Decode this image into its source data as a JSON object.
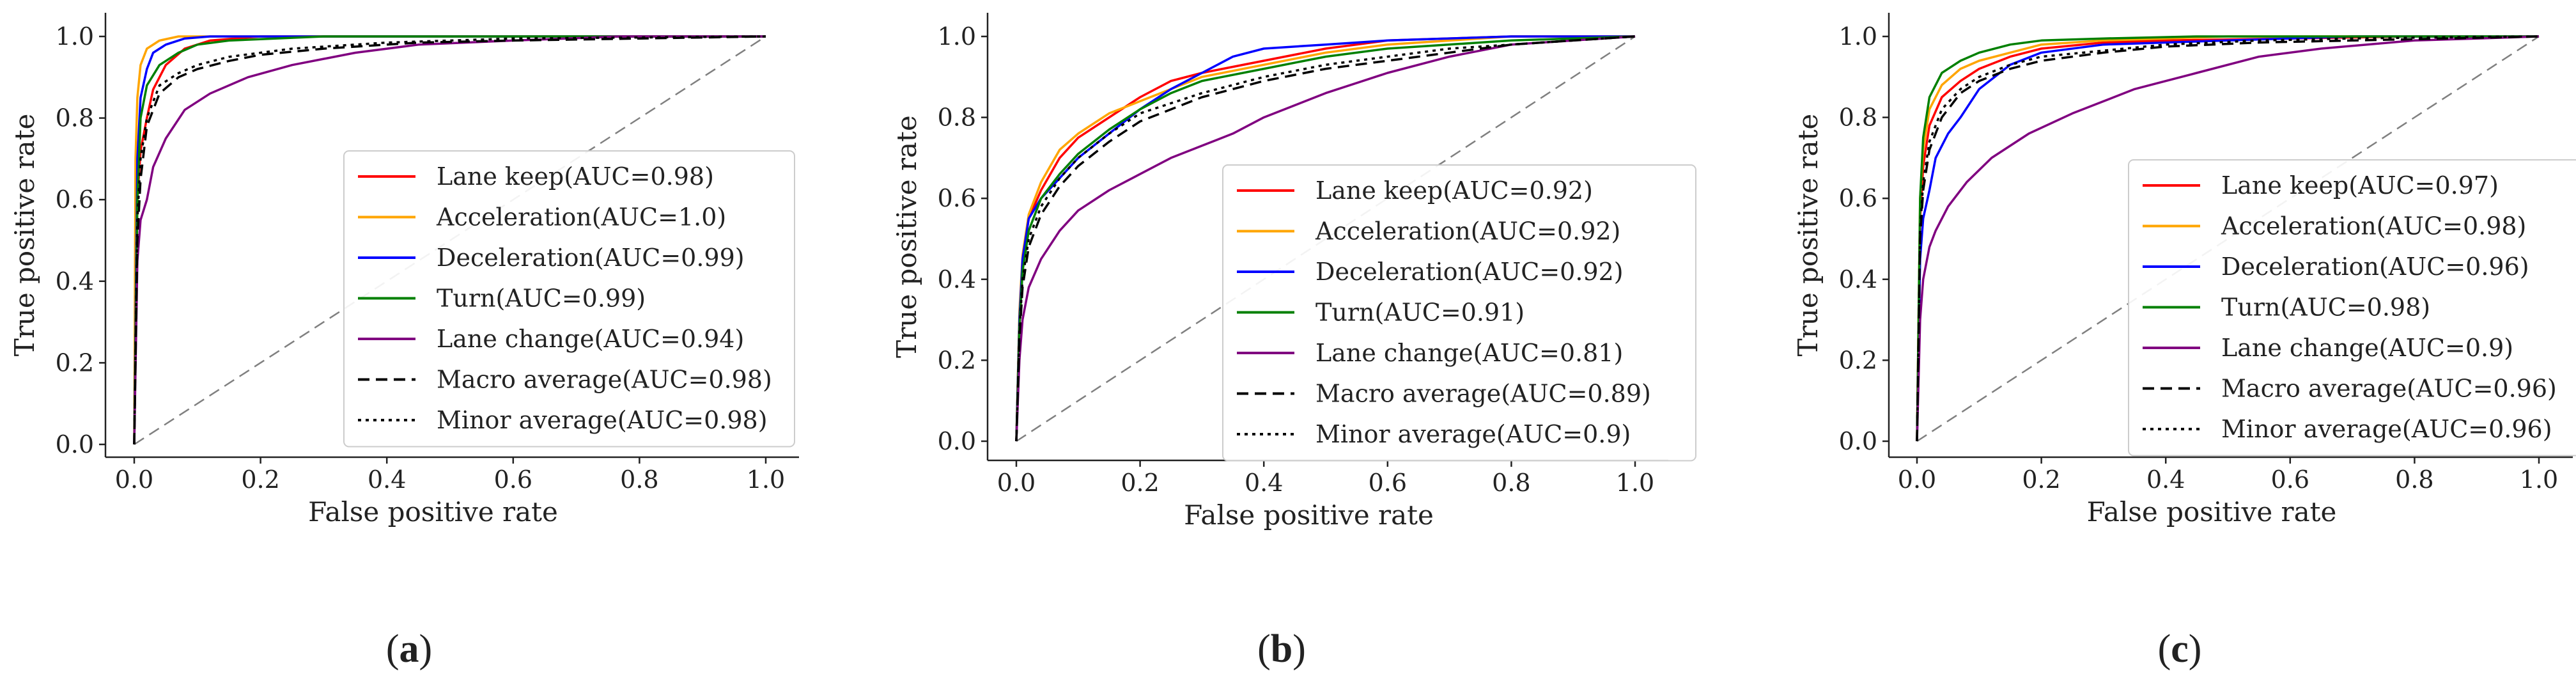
{
  "figure": {
    "panel_labels": [
      "a",
      "b",
      "c"
    ]
  },
  "chart_data": [
    {
      "type": "line",
      "panel": "a",
      "title": "",
      "xlabel": "False positive rate",
      "ylabel": "True positive rate",
      "xlim": [
        0.0,
        1.0
      ],
      "ylim": [
        0.0,
        1.0
      ],
      "xticks": [
        "0.0",
        "0.2",
        "0.4",
        "0.6",
        "0.8",
        "1.0"
      ],
      "yticks": [
        "0.0",
        "0.2",
        "0.4",
        "0.6",
        "0.8",
        "1.0"
      ],
      "legend_position": "lower-right",
      "grid": false,
      "series": [
        {
          "name": "Lane keep",
          "legend": "Lane keep(AUC=0.98)",
          "color": "#ff0000",
          "style": "solid",
          "x": [
            0,
            0.005,
            0.01,
            0.02,
            0.03,
            0.05,
            0.08,
            0.12,
            0.2,
            0.4,
            0.7,
            1
          ],
          "y": [
            0,
            0.6,
            0.72,
            0.8,
            0.87,
            0.93,
            0.97,
            0.99,
            1.0,
            1,
            1,
            1
          ]
        },
        {
          "name": "Acceleration",
          "legend": "Acceleration(AUC=1.0)",
          "color": "#ffa500",
          "style": "solid",
          "x": [
            0,
            0.002,
            0.005,
            0.01,
            0.02,
            0.04,
            0.07,
            0.1,
            1
          ],
          "y": [
            0,
            0.7,
            0.85,
            0.93,
            0.97,
            0.99,
            1,
            1,
            1
          ]
        },
        {
          "name": "Deceleration",
          "legend": "Deceleration(AUC=0.99)",
          "color": "#0000ff",
          "style": "solid",
          "x": [
            0,
            0.005,
            0.01,
            0.02,
            0.03,
            0.05,
            0.08,
            0.12,
            0.2,
            1
          ],
          "y": [
            0,
            0.7,
            0.85,
            0.92,
            0.96,
            0.98,
            0.995,
            1,
            1,
            1
          ]
        },
        {
          "name": "Turn",
          "legend": "Turn(AUC=0.99)",
          "color": "#008000",
          "style": "solid",
          "x": [
            0,
            0.005,
            0.01,
            0.02,
            0.04,
            0.07,
            0.1,
            0.15,
            0.3,
            1
          ],
          "y": [
            0,
            0.6,
            0.8,
            0.88,
            0.93,
            0.96,
            0.98,
            0.99,
            1,
            1
          ]
        },
        {
          "name": "Lane change",
          "legend": "Lane change(AUC=0.94)",
          "color": "#800080",
          "style": "solid",
          "x": [
            0,
            0.005,
            0.01,
            0.02,
            0.03,
            0.05,
            0.08,
            0.12,
            0.18,
            0.25,
            0.35,
            0.45,
            0.6,
            0.77,
            1
          ],
          "y": [
            0,
            0.45,
            0.55,
            0.6,
            0.68,
            0.75,
            0.82,
            0.86,
            0.9,
            0.93,
            0.96,
            0.98,
            0.99,
            1,
            1
          ]
        },
        {
          "name": "Macro average",
          "legend": "Macro average(AUC=0.98)",
          "color": "#000000",
          "style": "dashed",
          "x": [
            0,
            0.005,
            0.01,
            0.02,
            0.04,
            0.07,
            0.1,
            0.15,
            0.2,
            0.3,
            0.45,
            0.6,
            0.8,
            1
          ],
          "y": [
            0,
            0.5,
            0.65,
            0.78,
            0.86,
            0.9,
            0.92,
            0.94,
            0.955,
            0.97,
            0.985,
            0.99,
            0.995,
            1
          ]
        },
        {
          "name": "Minor average",
          "legend": "Minor average(AUC=0.98)",
          "color": "#000000",
          "style": "dotted",
          "x": [
            0,
            0.005,
            0.01,
            0.02,
            0.04,
            0.07,
            0.1,
            0.15,
            0.25,
            0.4,
            0.6,
            1
          ],
          "y": [
            0,
            0.55,
            0.7,
            0.8,
            0.88,
            0.91,
            0.93,
            0.95,
            0.97,
            0.985,
            0.995,
            1
          ]
        },
        {
          "name": "Chance",
          "legend": "",
          "color": "#808080",
          "style": "dashed",
          "x": [
            0,
            1
          ],
          "y": [
            0,
            1
          ]
        }
      ]
    },
    {
      "type": "line",
      "panel": "b",
      "title": "",
      "xlabel": "False positive rate",
      "ylabel": "True positive rate",
      "xlim": [
        0.0,
        1.0
      ],
      "ylim": [
        0.0,
        1.0
      ],
      "xticks": [
        "0.0",
        "0.2",
        "0.4",
        "0.6",
        "0.8",
        "1.0"
      ],
      "yticks": [
        "0.0",
        "0.2",
        "0.4",
        "0.6",
        "0.8",
        "1.0"
      ],
      "legend_position": "lower-right",
      "grid": false,
      "series": [
        {
          "name": "Lane keep",
          "legend": "Lane keep(AUC=0.92)",
          "color": "#ff0000",
          "style": "solid",
          "x": [
            0,
            0.005,
            0.01,
            0.02,
            0.04,
            0.07,
            0.1,
            0.15,
            0.2,
            0.25,
            0.3,
            0.4,
            0.5,
            0.6,
            0.8,
            1
          ],
          "y": [
            0,
            0.3,
            0.45,
            0.55,
            0.62,
            0.7,
            0.75,
            0.8,
            0.85,
            0.89,
            0.91,
            0.94,
            0.97,
            0.99,
            1,
            1
          ]
        },
        {
          "name": "Acceleration",
          "legend": "Acceleration(AUC=0.92)",
          "color": "#ffa500",
          "style": "solid",
          "x": [
            0,
            0.005,
            0.01,
            0.02,
            0.04,
            0.07,
            0.1,
            0.15,
            0.2,
            0.25,
            0.3,
            0.4,
            0.5,
            0.6,
            0.8,
            1
          ],
          "y": [
            0,
            0.32,
            0.46,
            0.56,
            0.64,
            0.72,
            0.76,
            0.81,
            0.84,
            0.87,
            0.9,
            0.93,
            0.96,
            0.98,
            1,
            1
          ]
        },
        {
          "name": "Deceleration",
          "legend": "Deceleration(AUC=0.92)",
          "color": "#0000ff",
          "style": "solid",
          "x": [
            0,
            0.005,
            0.01,
            0.02,
            0.04,
            0.07,
            0.1,
            0.15,
            0.2,
            0.25,
            0.3,
            0.35,
            0.4,
            0.5,
            0.6,
            0.8,
            1
          ],
          "y": [
            0,
            0.3,
            0.45,
            0.55,
            0.6,
            0.65,
            0.7,
            0.76,
            0.82,
            0.87,
            0.91,
            0.95,
            0.97,
            0.98,
            0.99,
            1,
            1
          ]
        },
        {
          "name": "Turn",
          "legend": "Turn(AUC=0.91)",
          "color": "#008000",
          "style": "solid",
          "x": [
            0,
            0.005,
            0.01,
            0.02,
            0.04,
            0.07,
            0.1,
            0.15,
            0.2,
            0.25,
            0.3,
            0.4,
            0.5,
            0.6,
            0.8,
            1
          ],
          "y": [
            0,
            0.28,
            0.42,
            0.52,
            0.6,
            0.66,
            0.71,
            0.77,
            0.82,
            0.86,
            0.89,
            0.92,
            0.95,
            0.97,
            0.99,
            1
          ]
        },
        {
          "name": "Lane change",
          "legend": "Lane change(AUC=0.81)",
          "color": "#800080",
          "style": "solid",
          "x": [
            0,
            0.005,
            0.01,
            0.02,
            0.04,
            0.07,
            0.1,
            0.15,
            0.2,
            0.25,
            0.3,
            0.35,
            0.4,
            0.5,
            0.6,
            0.7,
            0.8,
            0.9,
            1
          ],
          "y": [
            0,
            0.2,
            0.3,
            0.38,
            0.45,
            0.52,
            0.57,
            0.62,
            0.66,
            0.7,
            0.73,
            0.76,
            0.8,
            0.86,
            0.91,
            0.95,
            0.98,
            0.99,
            1
          ]
        },
        {
          "name": "Macro average",
          "legend": "Macro average(AUC=0.89)",
          "color": "#000000",
          "style": "dashed",
          "x": [
            0,
            0.005,
            0.01,
            0.02,
            0.04,
            0.07,
            0.1,
            0.15,
            0.2,
            0.3,
            0.4,
            0.5,
            0.6,
            0.7,
            0.8,
            0.9,
            1
          ],
          "y": [
            0,
            0.25,
            0.38,
            0.48,
            0.56,
            0.63,
            0.68,
            0.74,
            0.79,
            0.85,
            0.89,
            0.92,
            0.94,
            0.96,
            0.98,
            0.99,
            1
          ]
        },
        {
          "name": "Minor average",
          "legend": "Minor average(AUC=0.9)",
          "color": "#000000",
          "style": "dotted",
          "x": [
            0,
            0.005,
            0.01,
            0.02,
            0.04,
            0.07,
            0.1,
            0.15,
            0.2,
            0.3,
            0.4,
            0.5,
            0.6,
            0.7,
            0.8,
            0.9,
            1
          ],
          "y": [
            0,
            0.27,
            0.4,
            0.5,
            0.58,
            0.65,
            0.7,
            0.76,
            0.81,
            0.86,
            0.9,
            0.93,
            0.95,
            0.97,
            0.98,
            0.99,
            1
          ]
        },
        {
          "name": "Chance",
          "legend": "",
          "color": "#808080",
          "style": "dashed",
          "x": [
            0,
            1
          ],
          "y": [
            0,
            1
          ]
        }
      ]
    },
    {
      "type": "line",
      "panel": "c",
      "title": "",
      "xlabel": "False positive rate",
      "ylabel": "True positive rate",
      "xlim": [
        0.0,
        1.0
      ],
      "ylim": [
        0.0,
        1.0
      ],
      "xticks": [
        "0.0",
        "0.2",
        "0.4",
        "0.6",
        "0.8",
        "1.0"
      ],
      "yticks": [
        "0.0",
        "0.2",
        "0.4",
        "0.6",
        "0.8",
        "1.0"
      ],
      "legend_position": "lower-right",
      "grid": false,
      "series": [
        {
          "name": "Lane keep",
          "legend": "Lane keep(AUC=0.97)",
          "color": "#ff0000",
          "style": "solid",
          "x": [
            0,
            0.005,
            0.01,
            0.02,
            0.04,
            0.07,
            0.1,
            0.15,
            0.2,
            0.3,
            0.4,
            0.6,
            0.8,
            1
          ],
          "y": [
            0,
            0.55,
            0.68,
            0.78,
            0.85,
            0.89,
            0.92,
            0.95,
            0.97,
            0.985,
            0.99,
            0.995,
            1,
            1
          ]
        },
        {
          "name": "Acceleration",
          "legend": "Acceleration(AUC=0.98)",
          "color": "#ffa500",
          "style": "solid",
          "x": [
            0,
            0.005,
            0.01,
            0.02,
            0.04,
            0.07,
            0.1,
            0.15,
            0.2,
            0.3,
            0.5,
            0.8,
            1
          ],
          "y": [
            0,
            0.6,
            0.72,
            0.82,
            0.88,
            0.92,
            0.94,
            0.96,
            0.98,
            0.99,
            1,
            1,
            1
          ]
        },
        {
          "name": "Deceleration",
          "legend": "Deceleration(AUC=0.96)",
          "color": "#0000ff",
          "style": "solid",
          "x": [
            0,
            0.005,
            0.01,
            0.02,
            0.03,
            0.05,
            0.07,
            0.1,
            0.15,
            0.2,
            0.3,
            0.5,
            0.7,
            1
          ],
          "y": [
            0,
            0.45,
            0.55,
            0.62,
            0.7,
            0.76,
            0.8,
            0.87,
            0.93,
            0.96,
            0.98,
            0.99,
            1,
            1
          ]
        },
        {
          "name": "Turn",
          "legend": "Turn(AUC=0.98)",
          "color": "#008000",
          "style": "solid",
          "x": [
            0,
            0.005,
            0.01,
            0.02,
            0.04,
            0.07,
            0.1,
            0.15,
            0.2,
            0.3,
            0.45,
            0.7,
            1
          ],
          "y": [
            0,
            0.6,
            0.75,
            0.85,
            0.91,
            0.94,
            0.96,
            0.98,
            0.99,
            0.995,
            1,
            1,
            1
          ]
        },
        {
          "name": "Lane change",
          "legend": "Lane change(AUC=0.9)",
          "color": "#800080",
          "style": "solid",
          "x": [
            0,
            0.005,
            0.01,
            0.02,
            0.03,
            0.05,
            0.08,
            0.12,
            0.18,
            0.25,
            0.35,
            0.45,
            0.55,
            0.65,
            0.8,
            0.9,
            1
          ],
          "y": [
            0,
            0.3,
            0.4,
            0.48,
            0.52,
            0.58,
            0.64,
            0.7,
            0.76,
            0.81,
            0.87,
            0.91,
            0.95,
            0.97,
            0.99,
            0.995,
            1
          ]
        },
        {
          "name": "Macro average",
          "legend": "Macro average(AUC=0.96)",
          "color": "#000000",
          "style": "dashed",
          "x": [
            0,
            0.005,
            0.01,
            0.02,
            0.04,
            0.07,
            0.1,
            0.15,
            0.2,
            0.3,
            0.4,
            0.55,
            0.7,
            0.85,
            1
          ],
          "y": [
            0,
            0.5,
            0.62,
            0.72,
            0.8,
            0.86,
            0.89,
            0.92,
            0.94,
            0.96,
            0.975,
            0.985,
            0.99,
            0.995,
            1
          ]
        },
        {
          "name": "Minor average",
          "legend": "Minor average(AUC=0.96)",
          "color": "#000000",
          "style": "dotted",
          "x": [
            0,
            0.005,
            0.01,
            0.02,
            0.04,
            0.07,
            0.1,
            0.15,
            0.2,
            0.3,
            0.4,
            0.55,
            0.7,
            0.85,
            1
          ],
          "y": [
            0,
            0.52,
            0.64,
            0.74,
            0.82,
            0.87,
            0.9,
            0.93,
            0.95,
            0.965,
            0.98,
            0.99,
            0.995,
            0.998,
            1
          ]
        },
        {
          "name": "Chance",
          "legend": "",
          "color": "#808080",
          "style": "dashed",
          "x": [
            0,
            1
          ],
          "y": [
            0,
            1
          ]
        }
      ]
    }
  ]
}
